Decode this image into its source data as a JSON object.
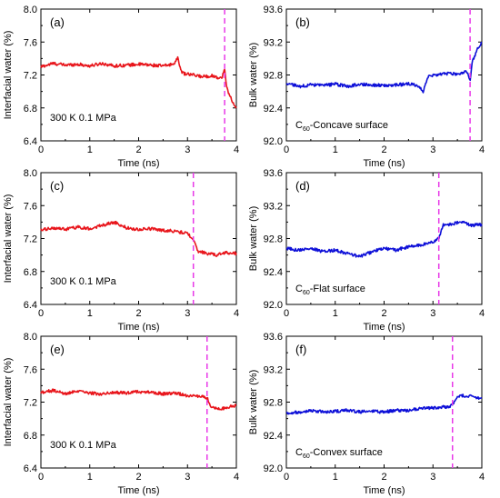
{
  "chart_data": [
    {
      "type": "line",
      "panel_label": "(a)",
      "column": 0,
      "row": 0,
      "xlabel": "Time (ns)",
      "ylabel": "Interfacial water (%)",
      "xlim": [
        0,
        4
      ],
      "ylim": [
        6.4,
        8.0
      ],
      "xticks": [
        "0",
        "1",
        "2",
        "3",
        "4"
      ],
      "yticks": [
        "6.4",
        "6.8",
        "7.2",
        "7.6",
        "8.0"
      ],
      "annotation": "300 K  0.1 MPa",
      "series_color": "#e8151b",
      "dashed_line_x": 3.76,
      "dashed_color": "#e838e8",
      "series": [
        {
          "x": [
            0,
            0.25,
            0.5,
            0.75,
            1.0,
            1.25,
            1.5,
            1.75,
            2.0,
            2.25,
            2.5,
            2.7,
            2.8,
            2.85,
            2.9,
            3.1,
            3.3,
            3.5,
            3.7,
            3.76,
            3.8,
            3.9,
            4.0
          ],
          "values": [
            7.3,
            7.34,
            7.32,
            7.33,
            7.31,
            7.34,
            7.31,
            7.32,
            7.33,
            7.32,
            7.31,
            7.33,
            7.4,
            7.3,
            7.22,
            7.2,
            7.18,
            7.19,
            7.16,
            7.27,
            7.05,
            6.9,
            6.8
          ]
        }
      ]
    },
    {
      "type": "line",
      "panel_label": "(b)",
      "column": 1,
      "row": 0,
      "xlabel": "Time (ns)",
      "ylabel": "Bulk water (%)",
      "xlim": [
        0,
        4
      ],
      "ylim": [
        92.0,
        93.6
      ],
      "xticks": [
        "0",
        "1",
        "2",
        "3",
        "4"
      ],
      "yticks": [
        "92.0",
        "92.4",
        "92.8",
        "93.2",
        "93.6"
      ],
      "annotation_main": "C",
      "annotation_sub": "60",
      "annotation_suffix": "-Concave surface",
      "series_color": "#0d0fd8",
      "dashed_line_x": 3.76,
      "dashed_color": "#e838e8",
      "series": [
        {
          "x": [
            0,
            0.25,
            0.5,
            0.75,
            1.0,
            1.25,
            1.5,
            1.75,
            2.0,
            2.25,
            2.5,
            2.7,
            2.8,
            2.85,
            2.9,
            3.1,
            3.3,
            3.5,
            3.7,
            3.76,
            3.8,
            3.9,
            4.0
          ],
          "values": [
            92.7,
            92.66,
            92.68,
            92.67,
            92.69,
            92.66,
            92.69,
            92.68,
            92.67,
            92.68,
            92.69,
            92.67,
            92.6,
            92.7,
            92.78,
            92.8,
            92.82,
            92.81,
            92.84,
            92.73,
            92.95,
            93.1,
            93.2
          ]
        }
      ]
    },
    {
      "type": "line",
      "panel_label": "(c)",
      "column": 0,
      "row": 1,
      "xlabel": "Time (ns)",
      "ylabel": "Interfacial water (%)",
      "xlim": [
        0,
        4
      ],
      "ylim": [
        6.4,
        8.0
      ],
      "xticks": [
        "0",
        "1",
        "2",
        "3",
        "4"
      ],
      "yticks": [
        "6.4",
        "6.8",
        "7.2",
        "7.6",
        "8.0"
      ],
      "annotation": "300 K  0.1 MPa",
      "series_color": "#e8151b",
      "dashed_line_x": 3.12,
      "dashed_color": "#e838e8",
      "series": [
        {
          "x": [
            0,
            0.25,
            0.5,
            0.75,
            1.0,
            1.25,
            1.5,
            1.75,
            2.0,
            2.25,
            2.5,
            2.75,
            3.0,
            3.12,
            3.2,
            3.4,
            3.6,
            3.8,
            4.0
          ],
          "values": [
            7.3,
            7.33,
            7.31,
            7.34,
            7.32,
            7.36,
            7.4,
            7.33,
            7.31,
            7.32,
            7.3,
            7.29,
            7.26,
            7.2,
            7.05,
            7.02,
            7.0,
            7.03,
            7.02
          ]
        }
      ]
    },
    {
      "type": "line",
      "panel_label": "(d)",
      "column": 1,
      "row": 1,
      "xlabel": "Time (ns)",
      "ylabel": "Bulk water (%)",
      "xlim": [
        0,
        4
      ],
      "ylim": [
        92.0,
        93.6
      ],
      "xticks": [
        "0",
        "1",
        "2",
        "3",
        "4"
      ],
      "yticks": [
        "92.0",
        "92.4",
        "92.8",
        "93.2",
        "93.6"
      ],
      "annotation_main": "C",
      "annotation_sub": "60",
      "annotation_suffix": "-Flat surface",
      "series_color": "#0d0fd8",
      "dashed_line_x": 3.12,
      "dashed_color": "#e838e8",
      "series": [
        {
          "x": [
            0,
            0.25,
            0.5,
            0.75,
            1.0,
            1.25,
            1.5,
            1.75,
            2.0,
            2.25,
            2.5,
            2.75,
            3.0,
            3.12,
            3.2,
            3.4,
            3.6,
            3.8,
            4.0
          ],
          "values": [
            92.68,
            92.66,
            92.68,
            92.64,
            92.66,
            92.62,
            92.58,
            92.64,
            92.68,
            92.66,
            92.7,
            92.72,
            92.76,
            92.8,
            92.96,
            92.98,
            93.0,
            92.96,
            92.97
          ]
        }
      ]
    },
    {
      "type": "line",
      "panel_label": "(e)",
      "column": 0,
      "row": 2,
      "xlabel": "Time (ns)",
      "ylabel": "Interfacial water (%)",
      "xlim": [
        0,
        4
      ],
      "ylim": [
        6.4,
        8.0
      ],
      "xticks": [
        "0",
        "1",
        "2",
        "3",
        "4"
      ],
      "yticks": [
        "6.4",
        "6.8",
        "7.2",
        "7.6",
        "8.0"
      ],
      "annotation": "300 K  0.1 MPa",
      "series_color": "#e8151b",
      "dashed_line_x": 3.4,
      "dashed_color": "#e838e8",
      "series": [
        {
          "x": [
            0,
            0.25,
            0.5,
            0.75,
            1.0,
            1.25,
            1.5,
            1.75,
            2.0,
            2.25,
            2.5,
            2.75,
            3.0,
            3.25,
            3.4,
            3.5,
            3.7,
            3.9,
            4.0
          ],
          "values": [
            7.32,
            7.34,
            7.3,
            7.33,
            7.31,
            7.3,
            7.32,
            7.31,
            7.33,
            7.32,
            7.3,
            7.31,
            7.28,
            7.27,
            7.25,
            7.13,
            7.12,
            7.15,
            7.16
          ]
        }
      ]
    },
    {
      "type": "line",
      "panel_label": "(f)",
      "column": 1,
      "row": 2,
      "xlabel": "Time (ns)",
      "ylabel": "Bulk water (%)",
      "xlim": [
        0,
        4
      ],
      "ylim": [
        92.0,
        93.6
      ],
      "xticks": [
        "0",
        "1",
        "2",
        "3",
        "4"
      ],
      "yticks": [
        "92.0",
        "92.4",
        "92.8",
        "93.2",
        "93.6"
      ],
      "annotation_main": "C",
      "annotation_sub": "60",
      "annotation_suffix": "-Convex surface",
      "series_color": "#0d0fd8",
      "dashed_line_x": 3.4,
      "dashed_color": "#e838e8",
      "series": [
        {
          "x": [
            0,
            0.25,
            0.5,
            0.75,
            1.0,
            1.25,
            1.5,
            1.75,
            2.0,
            2.25,
            2.5,
            2.75,
            3.0,
            3.25,
            3.4,
            3.5,
            3.7,
            3.9,
            4.0
          ],
          "values": [
            92.67,
            92.68,
            92.7,
            92.68,
            92.69,
            92.7,
            92.68,
            92.69,
            92.68,
            92.7,
            92.7,
            92.72,
            92.73,
            92.74,
            92.76,
            92.87,
            92.88,
            92.85,
            92.84
          ]
        }
      ]
    }
  ]
}
